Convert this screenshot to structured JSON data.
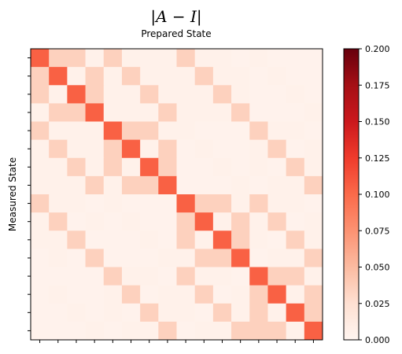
{
  "chart_data": {
    "type": "heatmap",
    "title": "|A − I|",
    "subtitle": "Prepared State",
    "xlabel": "",
    "ylabel": "Measured State",
    "rows": 16,
    "cols": 16,
    "vmin": 0.0,
    "vmax": 0.2,
    "colormap": "Reds",
    "colorbar_ticks": [
      "0.000",
      "0.025",
      "0.050",
      "0.075",
      "0.100",
      "0.125",
      "0.150",
      "0.175",
      "0.200"
    ],
    "x_tick_labels_visible": false,
    "y_tick_labels_visible": false,
    "values": [
      [
        0.105,
        0.035,
        0.035,
        0.005,
        0.035,
        0.005,
        0.005,
        0.005,
        0.035,
        0.005,
        0.005,
        0.003,
        0.005,
        0.003,
        0.003,
        0.003
      ],
      [
        0.035,
        0.105,
        0.005,
        0.035,
        0.005,
        0.035,
        0.005,
        0.005,
        0.005,
        0.035,
        0.005,
        0.005,
        0.003,
        0.005,
        0.003,
        0.003
      ],
      [
        0.035,
        0.005,
        0.105,
        0.035,
        0.005,
        0.005,
        0.035,
        0.005,
        0.005,
        0.005,
        0.035,
        0.005,
        0.003,
        0.003,
        0.005,
        0.003
      ],
      [
        0.005,
        0.035,
        0.035,
        0.105,
        0.005,
        0.005,
        0.005,
        0.035,
        0.005,
        0.005,
        0.005,
        0.035,
        0.003,
        0.003,
        0.003,
        0.005
      ],
      [
        0.035,
        0.005,
        0.005,
        0.005,
        0.105,
        0.035,
        0.035,
        0.005,
        0.005,
        0.003,
        0.003,
        0.003,
        0.035,
        0.005,
        0.005,
        0.003
      ],
      [
        0.005,
        0.035,
        0.005,
        0.005,
        0.035,
        0.105,
        0.005,
        0.035,
        0.003,
        0.005,
        0.003,
        0.003,
        0.005,
        0.035,
        0.003,
        0.005
      ],
      [
        0.005,
        0.005,
        0.035,
        0.005,
        0.035,
        0.005,
        0.105,
        0.035,
        0.003,
        0.003,
        0.005,
        0.003,
        0.005,
        0.003,
        0.035,
        0.005
      ],
      [
        0.005,
        0.005,
        0.005,
        0.035,
        0.005,
        0.035,
        0.035,
        0.105,
        0.003,
        0.003,
        0.003,
        0.005,
        0.003,
        0.005,
        0.005,
        0.035
      ],
      [
        0.035,
        0.005,
        0.005,
        0.003,
        0.005,
        0.003,
        0.003,
        0.003,
        0.105,
        0.035,
        0.035,
        0.005,
        0.035,
        0.005,
        0.005,
        0.003
      ],
      [
        0.005,
        0.035,
        0.003,
        0.005,
        0.003,
        0.005,
        0.003,
        0.003,
        0.035,
        0.105,
        0.005,
        0.035,
        0.005,
        0.035,
        0.003,
        0.005
      ],
      [
        0.005,
        0.005,
        0.035,
        0.003,
        0.003,
        0.003,
        0.005,
        0.003,
        0.035,
        0.005,
        0.105,
        0.035,
        0.005,
        0.003,
        0.035,
        0.005
      ],
      [
        0.003,
        0.005,
        0.003,
        0.035,
        0.003,
        0.003,
        0.003,
        0.005,
        0.005,
        0.035,
        0.035,
        0.105,
        0.003,
        0.005,
        0.005,
        0.035
      ],
      [
        0.003,
        0.003,
        0.003,
        0.003,
        0.035,
        0.005,
        0.005,
        0.003,
        0.035,
        0.005,
        0.005,
        0.003,
        0.105,
        0.035,
        0.035,
        0.005
      ],
      [
        0.003,
        0.005,
        0.003,
        0.003,
        0.005,
        0.035,
        0.003,
        0.005,
        0.005,
        0.035,
        0.003,
        0.005,
        0.035,
        0.105,
        0.005,
        0.035
      ],
      [
        0.003,
        0.003,
        0.005,
        0.003,
        0.005,
        0.003,
        0.035,
        0.005,
        0.005,
        0.003,
        0.035,
        0.005,
        0.035,
        0.005,
        0.105,
        0.035
      ],
      [
        0.003,
        0.003,
        0.003,
        0.005,
        0.003,
        0.005,
        0.005,
        0.035,
        0.003,
        0.005,
        0.005,
        0.035,
        0.035,
        0.035,
        0.005,
        0.105
      ]
    ]
  }
}
